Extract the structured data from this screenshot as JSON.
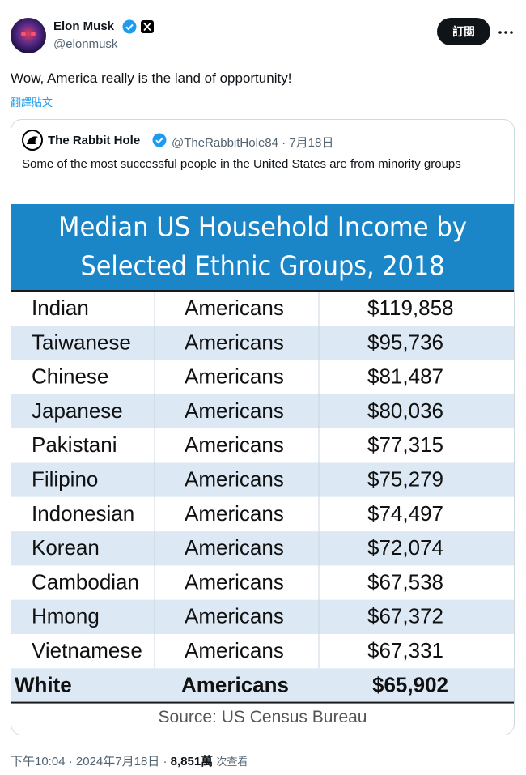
{
  "tweet": {
    "author": {
      "name": "Elon Musk",
      "handle": "@elonmusk"
    },
    "follow_button": "訂閱",
    "text": "Wow, America really is the land of opportunity!",
    "translate": "翻譯貼文",
    "quote": {
      "author": {
        "name": "The Rabbit Hole",
        "handle": "@TheRabbitHole84",
        "separator": "·",
        "date": "7月18日"
      },
      "text": "Some of the most successful people in the United States are from minority groups",
      "image": {
        "title": [
          "Median US Household Income by",
          "Selected Ethnic Groups, 2018"
        ],
        "rows": [
          [
            "Indian",
            "Americans",
            "$119,858"
          ],
          [
            "Taiwanese",
            "Americans",
            "$95,736"
          ],
          [
            "Chinese",
            "Americans",
            "$81,487"
          ],
          [
            "Japanese",
            "Americans",
            "$80,036"
          ],
          [
            "Pakistani",
            "Americans",
            "$77,315"
          ],
          [
            "Filipino",
            "Americans",
            "$75,279"
          ],
          [
            "Indonesian",
            "Americans",
            "$74,497"
          ],
          [
            "Korean",
            "Americans",
            "$72,074"
          ],
          [
            "Cambodian",
            "Americans",
            "$67,538"
          ],
          [
            "Hmong",
            "Americans",
            "$67,372"
          ],
          [
            "Vietnamese",
            "Americans",
            "$67,331"
          ],
          [
            "White",
            "Americans",
            "$65,902"
          ]
        ],
        "source": "Source: US Census Bureau"
      }
    },
    "time": "下午10:04",
    "separator": "·",
    "date": "2024年7月18日",
    "views": "8,851萬",
    "views_label": "次查看"
  }
}
